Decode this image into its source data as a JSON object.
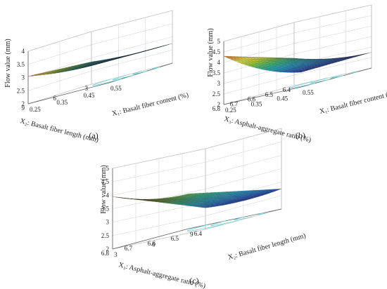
{
  "chart_data": [
    {
      "type": "surface",
      "panel_label": "(a)",
      "zlabel": "Flow value (mm)",
      "xlabel": "X₁: Basalt fiber content (%)",
      "ylabel": "X₂: Basalt fiber length (mm)",
      "x_ticks": [
        "0.25",
        "0.35",
        "0.45",
        "0.55"
      ],
      "y_ticks": [
        "3",
        "6",
        "9"
      ],
      "z_ticks": [
        "2",
        "2.5",
        "3",
        "3.5",
        "4"
      ],
      "xlim": [
        0.25,
        0.55
      ],
      "ylim": [
        3,
        9
      ],
      "zlim": [
        2,
        4
      ],
      "surface": {
        "x": [
          0.25,
          0.55
        ],
        "y": [
          3,
          9
        ],
        "corner_values": {
          "x0y0": 2.85,
          "x1y0": 2.75,
          "x0y1": 3.05,
          "x1y1": 2.85
        },
        "curvature": 0.1
      }
    },
    {
      "type": "surface",
      "panel_label": "(b)",
      "zlabel": "Flow value (mm)",
      "xlabel": "X₁: Basalt fiber content (%)",
      "ylabel": "X₃: Asphalt-aggregate ratio (%)",
      "x_ticks": [
        "0.25",
        "0.35",
        "0.45",
        "0.55"
      ],
      "y_ticks": [
        "6.4",
        "6.5",
        "6.6",
        "6.7",
        "6.8"
      ],
      "z_ticks": [
        "2",
        "2.5",
        "3",
        "3.5",
        "4",
        "4.5",
        "5"
      ],
      "xlim": [
        0.25,
        0.55
      ],
      "ylim": [
        6.4,
        6.8
      ],
      "zlim": [
        2,
        5
      ],
      "surface": {
        "x": [
          0.25,
          0.55
        ],
        "y": [
          6.4,
          6.8
        ],
        "corner_values": {
          "x0y0": 3.3,
          "x1y0": 2.75,
          "x0y1": 4.3,
          "x1y1": 2.7
        },
        "curvature": 0.25
      }
    },
    {
      "type": "surface",
      "panel_label": "(c)",
      "zlabel": "Flow value (mm)",
      "xlabel": "X₂: Basalt fiber length (mm)",
      "ylabel": "X₃: Asphalt-aggregate ratio (%)",
      "x_ticks": [
        "3",
        "6",
        "9"
      ],
      "y_ticks": [
        "6.4",
        "6.5",
        "6.6",
        "6.7",
        "6.8"
      ],
      "z_ticks": [
        "2",
        "2.5",
        "3",
        "3.5",
        "4",
        "4.5",
        "5"
      ],
      "xlim": [
        3,
        9
      ],
      "ylim": [
        6.4,
        6.8
      ],
      "zlim": [
        2,
        5
      ],
      "surface": {
        "x": [
          3,
          9
        ],
        "y": [
          6.4,
          6.8
        ],
        "corner_values": {
          "x0y0": 2.8,
          "x1y0": 2.75,
          "x0y1": 3.95,
          "x1y1": 3.3
        },
        "curvature": 0.15
      }
    }
  ],
  "colormap": [
    "#1f2f9c",
    "#1f73c8",
    "#22a8c6",
    "#2fbf8f",
    "#73cc4e",
    "#c8dc2e",
    "#f2e23a",
    "#f39a2a",
    "#e4472c"
  ]
}
